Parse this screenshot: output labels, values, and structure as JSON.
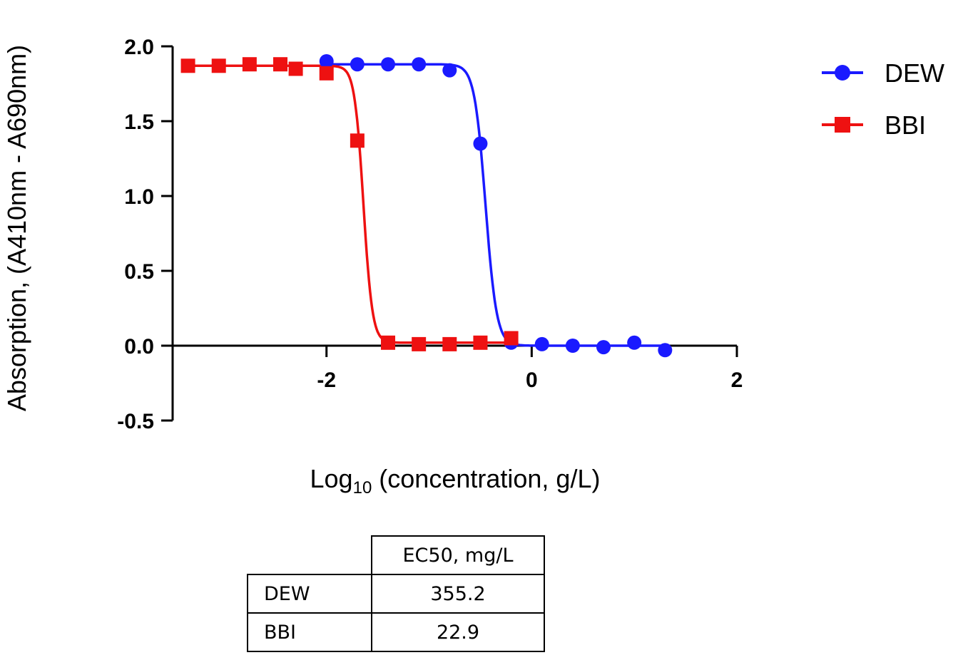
{
  "chart_data": {
    "type": "scatter",
    "xlabel": {
      "main": "Log",
      "sub": "10",
      "rest": " (concentration, g/L)"
    },
    "ylabel": "Absorption, (A410nm - A690nm)",
    "xlim": [
      -3.5,
      2.0
    ],
    "ylim": [
      -0.5,
      2.0
    ],
    "xticks": [
      -2,
      0,
      2
    ],
    "xtick_labels": [
      "-2",
      "0",
      "2"
    ],
    "yticks": [
      2.0,
      1.5,
      1.0,
      0.5,
      0.0,
      -0.5
    ],
    "ytick_labels": [
      "2.0",
      "1.5",
      "1.0",
      "0.5",
      "0.0",
      "-0.5"
    ],
    "legend_position": "top-right",
    "series": [
      {
        "name": "DEW",
        "color": "#1a1aff",
        "marker": "circle",
        "points": [
          {
            "x": -2.0,
            "y": 1.9
          },
          {
            "x": -1.7,
            "y": 1.88
          },
          {
            "x": -1.4,
            "y": 1.88
          },
          {
            "x": -1.1,
            "y": 1.88
          },
          {
            "x": -0.8,
            "y": 1.84
          },
          {
            "x": -0.5,
            "y": 1.35
          },
          {
            "x": -0.2,
            "y": 0.02
          },
          {
            "x": 0.1,
            "y": 0.01
          },
          {
            "x": 0.4,
            "y": 0.0
          },
          {
            "x": 0.7,
            "y": -0.01
          },
          {
            "x": 1.0,
            "y": 0.02
          },
          {
            "x": 1.3,
            "y": -0.03
          }
        ],
        "fit": {
          "top": 1.88,
          "bottom": 0.0,
          "log_ec50": -0.45,
          "hill": 8,
          "x_range": [
            -2.0,
            1.3
          ]
        }
      },
      {
        "name": "BBI",
        "color": "#ee1111",
        "marker": "square",
        "points": [
          {
            "x": -3.35,
            "y": 1.87
          },
          {
            "x": -3.05,
            "y": 1.87
          },
          {
            "x": -2.75,
            "y": 1.88
          },
          {
            "x": -2.45,
            "y": 1.88
          },
          {
            "x": -2.3,
            "y": 1.85
          },
          {
            "x": -2.0,
            "y": 1.82
          },
          {
            "x": -1.7,
            "y": 1.37
          },
          {
            "x": -1.4,
            "y": 0.02
          },
          {
            "x": -1.1,
            "y": 0.01
          },
          {
            "x": -0.8,
            "y": 0.01
          },
          {
            "x": -0.5,
            "y": 0.02
          },
          {
            "x": -0.2,
            "y": 0.05
          }
        ],
        "fit": {
          "top": 1.87,
          "bottom": 0.02,
          "log_ec50": -1.64,
          "hill": 10,
          "x_range": [
            -3.35,
            -0.2
          ]
        }
      }
    ]
  },
  "table": {
    "header": "EC50, mg/L",
    "rows": [
      {
        "name": "DEW",
        "value": "355.2"
      },
      {
        "name": "BBI",
        "value": "22.9"
      }
    ]
  }
}
